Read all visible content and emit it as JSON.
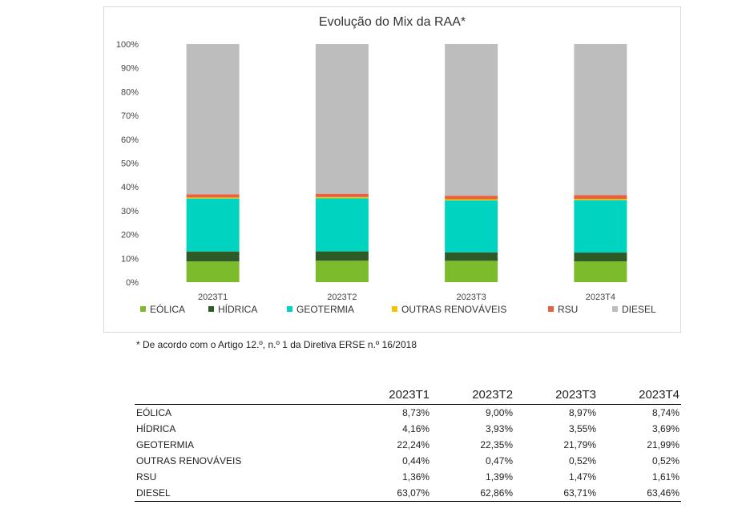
{
  "chart_data": {
    "type": "stacked-bar",
    "title": "Evolução do Mix da RAA*",
    "categories": [
      "2023T1",
      "2023T2",
      "2023T3",
      "2023T4"
    ],
    "ylim": [
      0,
      100
    ],
    "yticks": [
      "0%",
      "10%",
      "20%",
      "30%",
      "40%",
      "50%",
      "60%",
      "70%",
      "80%",
      "90%",
      "100%"
    ],
    "legend_position": "bottom",
    "series": [
      {
        "name": "EÓLICA",
        "color": "#7cbb2c",
        "values": [
          8.73,
          9.0,
          8.97,
          8.74
        ]
      },
      {
        "name": "HÍDRICA",
        "color": "#2d5a27",
        "values": [
          4.16,
          3.93,
          3.55,
          3.69
        ]
      },
      {
        "name": "GEOTERMIA",
        "color": "#00d4c0",
        "values": [
          22.24,
          22.35,
          21.79,
          21.99
        ]
      },
      {
        "name": "OUTRAS RENOVÁVEIS",
        "color": "#f5c400",
        "values": [
          0.44,
          0.47,
          0.52,
          0.52
        ]
      },
      {
        "name": "RSU",
        "color": "#e8613c",
        "values": [
          1.36,
          1.39,
          1.47,
          1.61
        ]
      },
      {
        "name": "DIESEL",
        "color": "#bdbdbd",
        "values": [
          63.07,
          62.86,
          63.71,
          63.46
        ]
      }
    ]
  },
  "footnote": "* De acordo com o Artigo 12.º, n.º 1 da Diretiva ERSE n.º 16/2018",
  "table": {
    "columns": [
      "2023T1",
      "2023T2",
      "2023T3",
      "2023T4"
    ],
    "rows": [
      {
        "label": "EÓLICA",
        "values": [
          "8,73%",
          "9,00%",
          "8,97%",
          "8,74%"
        ]
      },
      {
        "label": "HÍDRICA",
        "values": [
          "4,16%",
          "3,93%",
          "3,55%",
          "3,69%"
        ]
      },
      {
        "label": "GEOTERMIA",
        "values": [
          "22,24%",
          "22,35%",
          "21,79%",
          "21,99%"
        ]
      },
      {
        "label": "OUTRAS RENOVÁVEIS",
        "values": [
          "0,44%",
          "0,47%",
          "0,52%",
          "0,52%"
        ]
      },
      {
        "label": "RSU",
        "values": [
          "1,36%",
          "1,39%",
          "1,47%",
          "1,61%"
        ]
      },
      {
        "label": "DIESEL",
        "values": [
          "63,07%",
          "62,86%",
          "63,71%",
          "63,46%"
        ]
      }
    ]
  }
}
